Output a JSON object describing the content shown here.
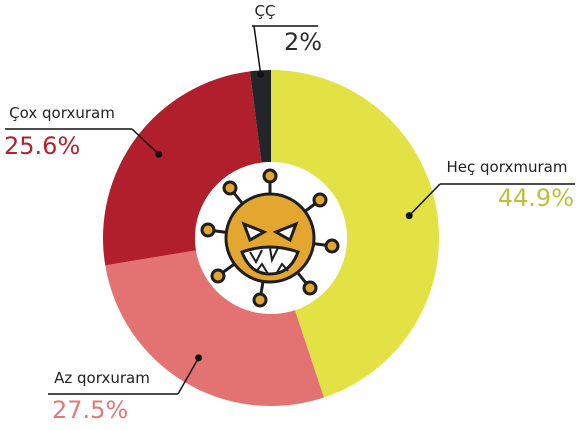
{
  "chart_data": {
    "type": "donut",
    "categories": [
      "Heç qorxmuram",
      "Az qorxuram",
      "Çox qorxuram",
      "ÇÇ"
    ],
    "values": [
      44.9,
      27.5,
      25.6,
      2
    ],
    "value_labels": [
      "44.9%",
      "27.5%",
      "25.6%",
      "2%"
    ],
    "colors": [
      "#e3e245",
      "#e37373",
      "#b11f2d",
      "#22262b"
    ],
    "label_colors": [
      "#b9c23c",
      "#e17b7b",
      "#b0232e",
      "#2b2b2b"
    ]
  }
}
